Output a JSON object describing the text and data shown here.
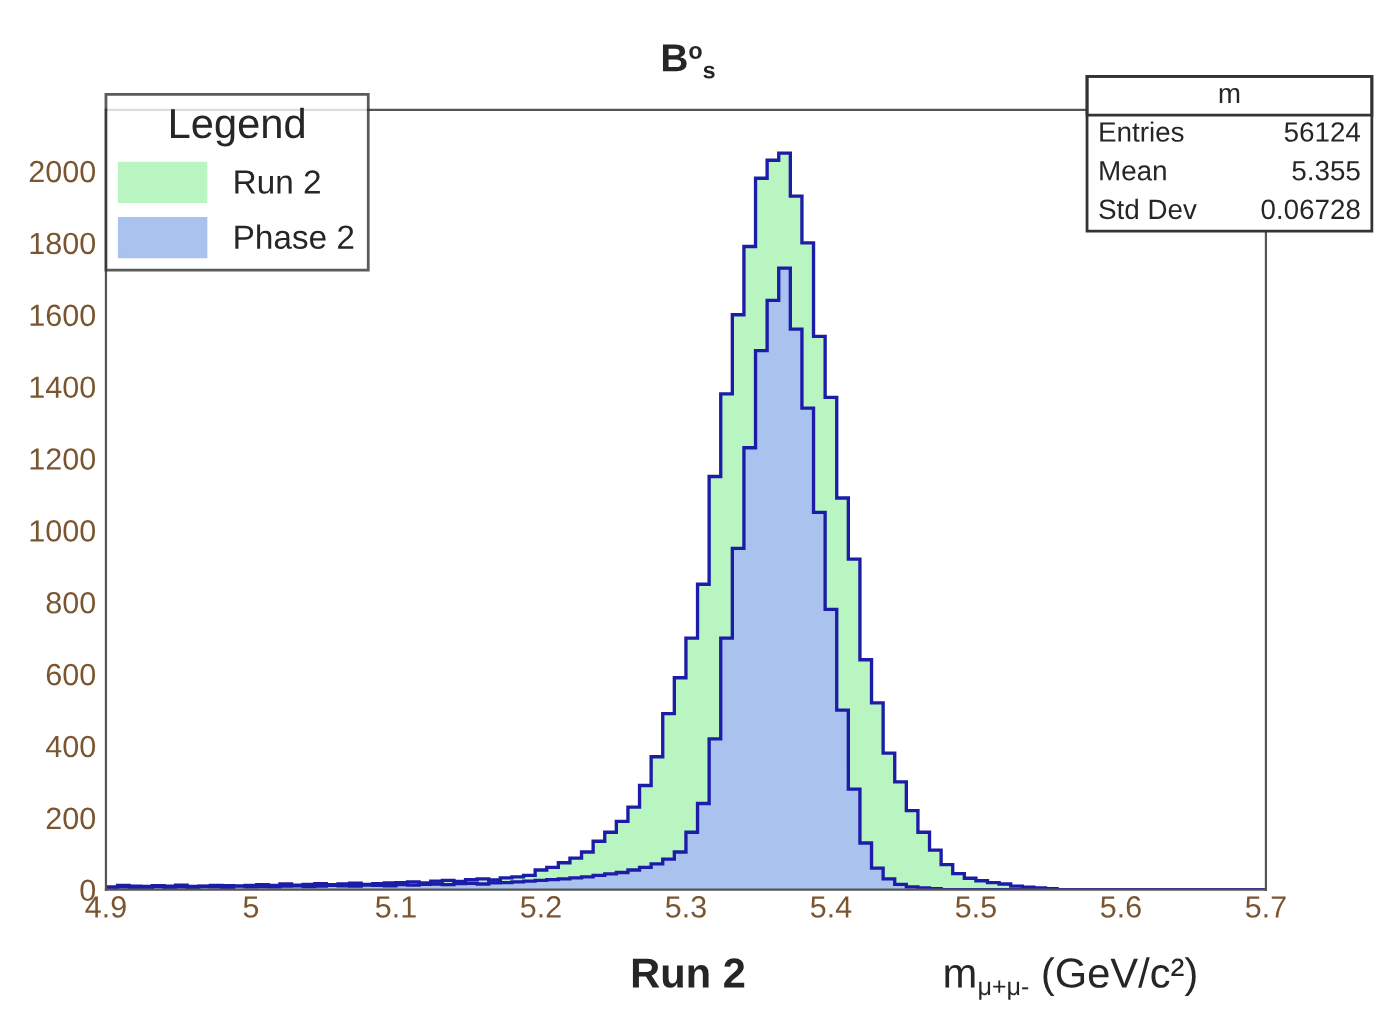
{
  "chart_data": {
    "type": "histogram",
    "title": "B$^{o}$$_{s}$",
    "xlabel": "m$_{μ+μ-}$ (GeV/c²)",
    "legend_title": "Legend",
    "legend": "top left",
    "grid": false,
    "bins": [
      4.9,
      4.908,
      4.916,
      4.924,
      4.932,
      4.94,
      4.948,
      4.956,
      4.964,
      4.972,
      4.98,
      4.988,
      4.996,
      5.004,
      5.012,
      5.02,
      5.028,
      5.036,
      5.044,
      5.052,
      5.06,
      5.068,
      5.076,
      5.084,
      5.092,
      5.1,
      5.108,
      5.116,
      5.124,
      5.132,
      5.14,
      5.148,
      5.156,
      5.164,
      5.172,
      5.18,
      5.188,
      5.196,
      5.204,
      5.212,
      5.22,
      5.228,
      5.236,
      5.244,
      5.252,
      5.26,
      5.268,
      5.276,
      5.284,
      5.292,
      5.3,
      5.308,
      5.316,
      5.324,
      5.332,
      5.34,
      5.348,
      5.356,
      5.364,
      5.372,
      5.38,
      5.388,
      5.396,
      5.404,
      5.412,
      5.42,
      5.428,
      5.436,
      5.444,
      5.452,
      5.46,
      5.468,
      5.476,
      5.484,
      5.492,
      5.5,
      5.508,
      5.516,
      5.524,
      5.532,
      5.54,
      5.548,
      5.556,
      5.564,
      5.572,
      5.58,
      5.588,
      5.596,
      5.604,
      5.612,
      5.62,
      5.628,
      5.636,
      5.644,
      5.652,
      5.66,
      5.668,
      5.676,
      5.684,
      5.692,
      5.7
    ],
    "series": [
      {
        "name": "Run 2",
        "color": "#b8f5c0",
        "values": [
          8,
          12,
          10,
          9,
          11,
          10,
          13,
          9,
          10,
          12,
          11,
          10,
          12,
          14,
          12,
          16,
          13,
          15,
          17,
          14,
          16,
          18,
          15,
          17,
          19,
          20,
          22,
          19,
          24,
          26,
          23,
          28,
          30,
          27,
          33,
          36,
          40,
          55,
          62,
          75,
          88,
          105,
          135,
          160,
          190,
          230,
          290,
          370,
          490,
          590,
          700,
          850,
          1150,
          1380,
          1600,
          1790,
          1980,
          2030,
          2050,
          1930,
          1800,
          1540,
          1370,
          1090,
          920,
          640,
          520,
          380,
          300,
          220,
          160,
          110,
          70,
          45,
          32,
          25,
          20,
          16,
          10,
          7,
          5,
          3,
          0,
          0,
          0,
          0,
          0,
          0,
          0,
          0,
          0,
          0,
          0,
          0,
          0,
          0,
          0,
          0,
          0,
          0
        ]
      },
      {
        "name": "Phase 2",
        "color": "#a9c2ee",
        "values": [
          5,
          8,
          6,
          7,
          9,
          6,
          8,
          7,
          9,
          8,
          7,
          10,
          8,
          9,
          8,
          10,
          11,
          9,
          10,
          12,
          11,
          10,
          13,
          12,
          11,
          14,
          13,
          15,
          16,
          14,
          17,
          18,
          16,
          19,
          20,
          22,
          24,
          26,
          28,
          30,
          33,
          36,
          40,
          44,
          48,
          55,
          62,
          72,
          85,
          105,
          160,
          240,
          420,
          700,
          950,
          1230,
          1500,
          1640,
          1730,
          1560,
          1340,
          1050,
          780,
          500,
          280,
          130,
          60,
          30,
          15,
          8,
          5,
          3,
          0,
          0,
          0,
          0,
          0,
          0,
          0,
          0,
          0,
          0,
          0,
          0,
          0,
          0,
          0,
          0,
          0,
          0,
          0,
          0,
          0,
          0,
          0,
          0,
          0,
          0,
          0,
          0
        ]
      }
    ],
    "xlim": [
      4.9,
      5.7
    ],
    "xticks": [
      4.9,
      5,
      5.1,
      5.2,
      5.3,
      5.4,
      5.5,
      5.6,
      5.7
    ],
    "ylim": [
      0,
      2170
    ],
    "yticks": [
      0,
      200,
      400,
      600,
      800,
      1000,
      1200,
      1400,
      1600,
      1800,
      2000
    ],
    "annotations": [
      "m",
      "Entries",
      "56124",
      "Mean",
      "5.355",
      "Std Dev",
      "0.06728",
      "Run 2"
    ]
  }
}
